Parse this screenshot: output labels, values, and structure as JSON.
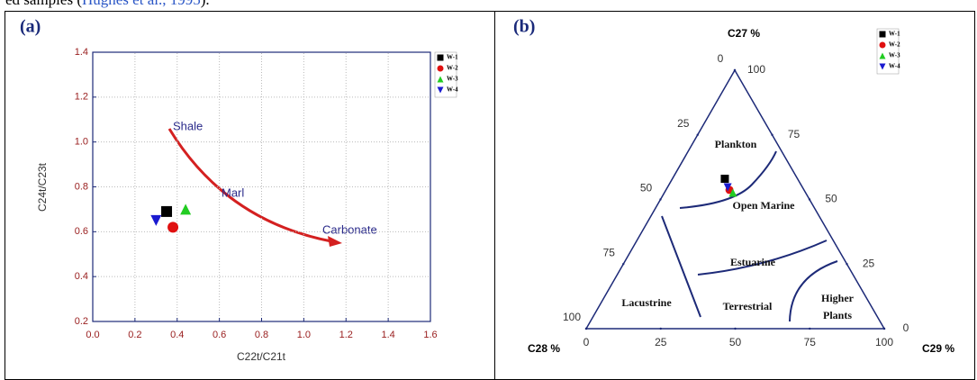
{
  "caption": {
    "before": "ed samples (",
    "link": "Hughes et al., 1995",
    "after": ")."
  },
  "chart_data": [
    {
      "type": "scatter",
      "panel_label": "(a)",
      "x_label": "C22t/C21t",
      "y_label": "C24t/C23t",
      "xlim": [
        0,
        1.6
      ],
      "xticks": [
        {
          "value": 0,
          "label": "0.0"
        },
        0.2,
        0.4,
        0.6,
        0.8,
        {
          "value": 1,
          "label": "1.0"
        },
        1.2,
        1.4,
        1.6
      ],
      "ylim": [
        0.2,
        1.4
      ],
      "yticks": [
        0.2,
        0.4,
        0.6,
        0.8,
        {
          "value": 1,
          "label": "1.0"
        },
        1.2,
        1.4
      ],
      "grid": true,
      "series": [
        {
          "name": "W-1",
          "color": "#000000",
          "marker": "square",
          "x": [
            0.35
          ],
          "values": [
            0.69
          ]
        },
        {
          "name": "W-2",
          "color": "#e01010",
          "marker": "circle",
          "x": [
            0.38
          ],
          "values": [
            0.62
          ]
        },
        {
          "name": "W-3",
          "color": "#22cc22",
          "marker": "triangle-up",
          "x": [
            0.44
          ],
          "values": [
            0.7
          ]
        },
        {
          "name": "W-4",
          "color": "#1a1ad0",
          "marker": "triangle-down",
          "x": [
            0.3
          ],
          "values": [
            0.65
          ]
        }
      ],
      "annotations": [
        "Shale",
        "Marl",
        "Carbonate"
      ]
    },
    {
      "type": "ternary",
      "panel_label": "(b)",
      "axes": [
        {
          "label": "C27 %",
          "ticks": [
            0,
            25,
            50,
            75,
            100
          ]
        },
        {
          "label": "C28 %",
          "ticks": [
            0,
            25,
            50,
            75,
            100
          ]
        },
        {
          "label": "C29 %",
          "ticks": [
            0,
            25,
            50,
            75,
            100
          ]
        }
      ],
      "series": [
        {
          "name": "W-1",
          "color": "#000000",
          "marker": "square",
          "values": [
            58,
            24.4,
            17.6
          ]
        },
        {
          "name": "W-2",
          "color": "#e01010",
          "marker": "circle",
          "values": [
            53.7,
            25,
            21.3
          ]
        },
        {
          "name": "W-3",
          "color": "#22cc22",
          "marker": "triangle-up",
          "values": [
            52.6,
            24.4,
            23
          ]
        },
        {
          "name": "W-4",
          "color": "#1a1ad0",
          "marker": "triangle-down",
          "values": [
            54.7,
            25.1,
            20.2
          ]
        }
      ],
      "regions": [
        "Plankton",
        "Open Marine",
        "Estuarine",
        "Lacustrine",
        "Terrestrial",
        "Higher Plants"
      ]
    }
  ]
}
